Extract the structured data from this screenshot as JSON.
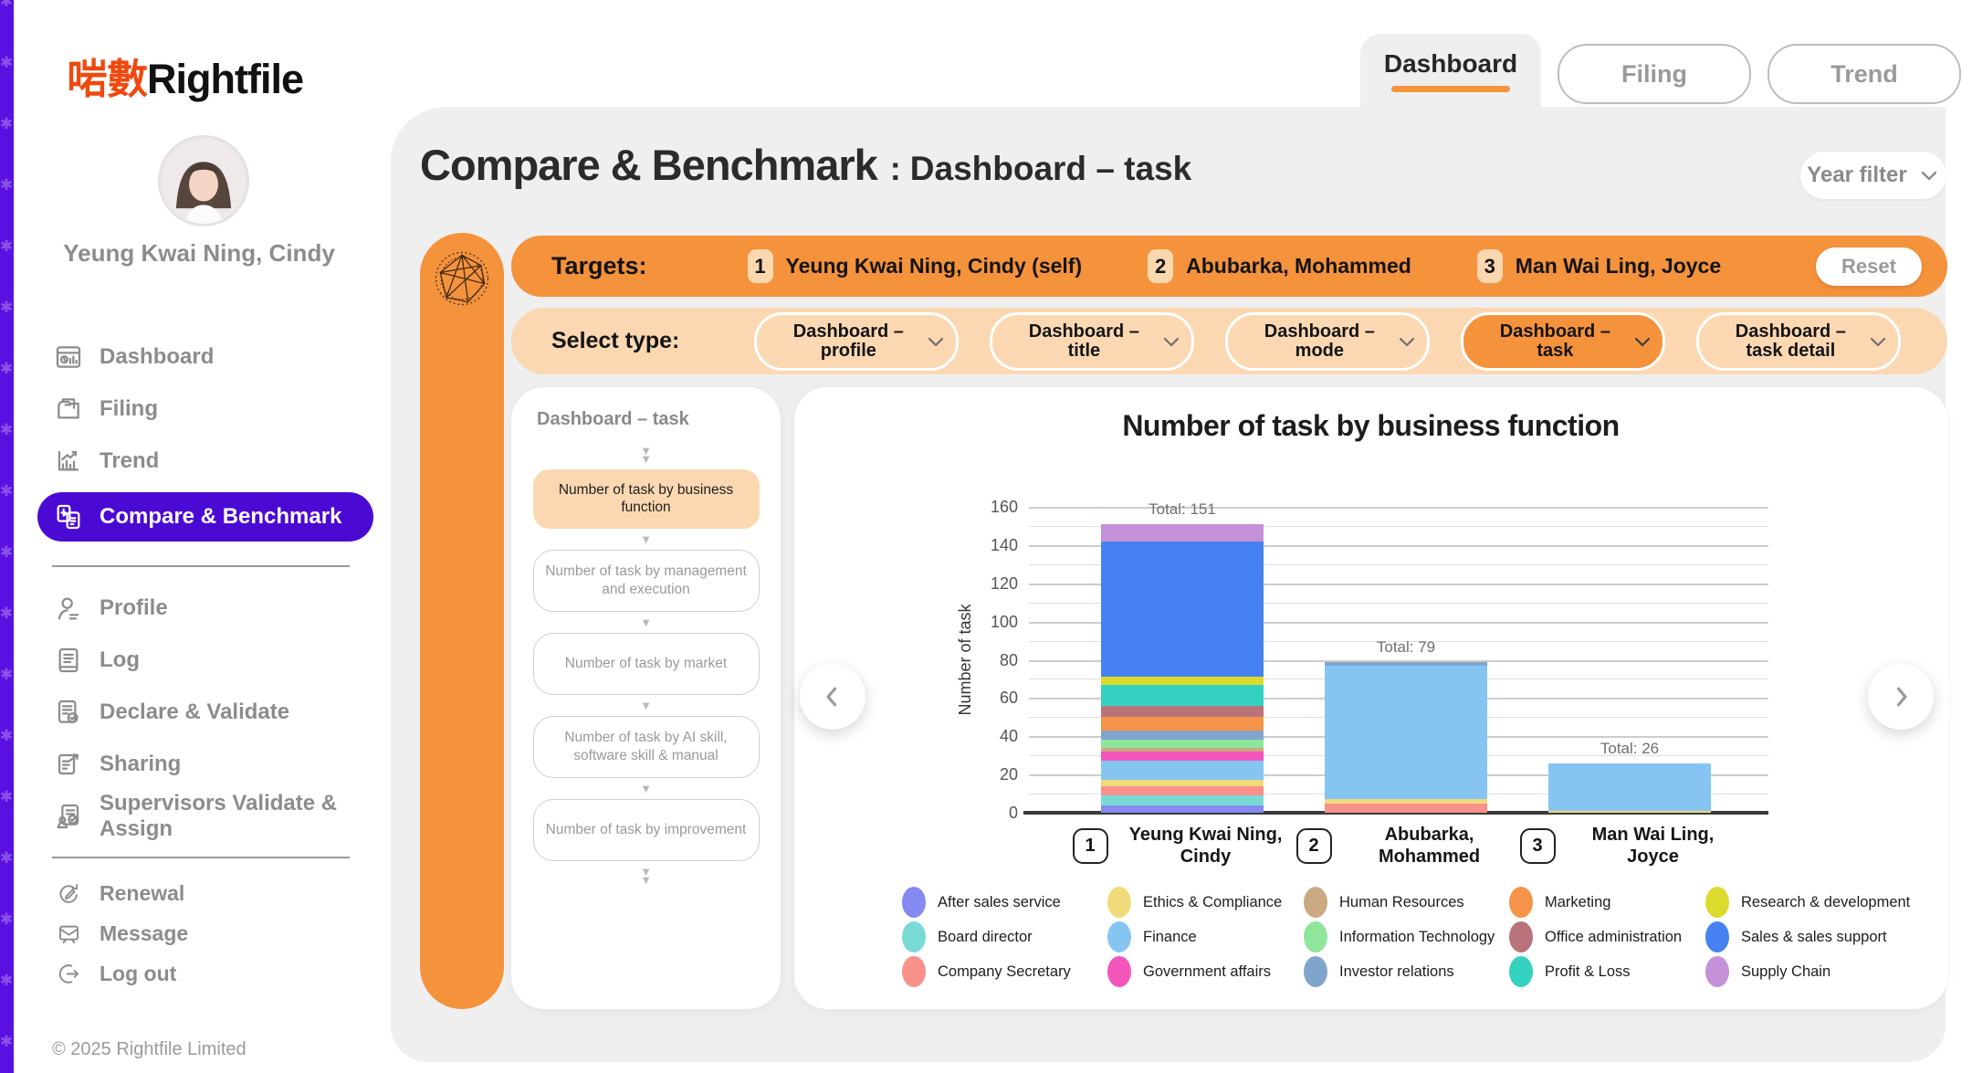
{
  "brand": {
    "logo_cjk": "啱數",
    "logo_latin": "Rightfile"
  },
  "top_tabs": [
    {
      "label": "Dashboard",
      "active": true
    },
    {
      "label": "Filing",
      "active": false
    },
    {
      "label": "Trend",
      "active": false
    }
  ],
  "sidebar": {
    "user_name": "Yeung Kwai Ning, Cindy",
    "items": [
      {
        "id": "dashboard",
        "label": "Dashboard",
        "icon": "dashboard-icon"
      },
      {
        "id": "filing",
        "label": "Filing",
        "icon": "filing-icon"
      },
      {
        "id": "trend",
        "label": "Trend",
        "icon": "trend-icon"
      },
      {
        "id": "compare-benchmark",
        "label": "Compare & Benchmark",
        "icon": "compare-benchmark-icon",
        "active": true
      },
      {
        "divider": true
      },
      {
        "id": "profile",
        "label": "Profile",
        "icon": "profile-icon"
      },
      {
        "id": "log",
        "label": "Log",
        "icon": "log-icon"
      },
      {
        "id": "declare-validate",
        "label": "Declare & Validate",
        "icon": "declare-validate-icon"
      },
      {
        "id": "sharing",
        "label": "Sharing",
        "icon": "sharing-icon"
      },
      {
        "id": "supervisors-validate-assign",
        "label": "Supervisors Validate & Assign",
        "icon": "supervisors-validate-assign-icon"
      },
      {
        "divider": true
      },
      {
        "id": "renewal",
        "label": "Renewal",
        "icon": "renewal-icon",
        "small": true
      },
      {
        "id": "message",
        "label": "Message",
        "icon": "message-icon",
        "small": true
      },
      {
        "id": "logout",
        "label": "Log out",
        "icon": "logout-icon",
        "small": true
      }
    ],
    "footer": "© 2025  Rightfile Limited"
  },
  "header": {
    "title_main": "Compare & Benchmark",
    "title_sep": ":",
    "title_sub": "Dashboard – task",
    "year_filter_label": "Year filter"
  },
  "targets": {
    "label": "Targets:",
    "reset_label": "Reset",
    "items": [
      {
        "badge": "1",
        "name": "Yeung Kwai Ning, Cindy (self)"
      },
      {
        "badge": "2",
        "name": "Abubarka, Mohammed"
      },
      {
        "badge": "3",
        "name": "Man Wai Ling, Joyce"
      }
    ]
  },
  "select_type": {
    "label": "Select type:",
    "options": [
      {
        "lines": [
          "Dashboard –",
          "profile"
        ],
        "selected": false
      },
      {
        "lines": [
          "Dashboard –",
          "title"
        ],
        "selected": false
      },
      {
        "lines": [
          "Dashboard –",
          "mode"
        ],
        "selected": false
      },
      {
        "lines": [
          "Dashboard –",
          "task"
        ],
        "selected": true
      },
      {
        "lines": [
          "Dashboard –",
          "task detail"
        ],
        "selected": false
      }
    ]
  },
  "flow": {
    "heading": "Dashboard – task",
    "steps": [
      {
        "label": "Number of task by business function",
        "active": true
      },
      {
        "label": "Number of task by management and execution",
        "active": false
      },
      {
        "label": "Number of task by market",
        "active": false
      },
      {
        "label": "Number of task by AI skill, software skill & manual",
        "active": false
      },
      {
        "label": "Number of task by improvement",
        "active": false
      }
    ]
  },
  "chart_data": {
    "type": "bar",
    "stacked": true,
    "title": "Number of task by business function",
    "ylabel": "Number of task",
    "ylim": [
      0,
      160
    ],
    "ytick_step": 20,
    "grid_step": 10,
    "grid": true,
    "legend_position": "bottom",
    "categories": [
      {
        "badge": "1",
        "name": "Yeung Kwai Ning, Cindy"
      },
      {
        "badge": "2",
        "name": "Abubarka, Mohammed"
      },
      {
        "badge": "3",
        "name": "Man Wai Ling, Joyce"
      }
    ],
    "totals": [
      151,
      79,
      26
    ],
    "total_label_prefix": "Total: ",
    "series": [
      {
        "name": "After sales service",
        "color": "#8589f2",
        "values": [
          4,
          0,
          0
        ]
      },
      {
        "name": "Board director",
        "color": "#79dad5",
        "values": [
          5,
          0,
          0
        ]
      },
      {
        "name": "Company Secretary",
        "color": "#f8918a",
        "values": [
          5,
          5,
          0
        ]
      },
      {
        "name": "Ethics & Compliance",
        "color": "#f1da7a",
        "values": [
          3,
          2,
          1
        ]
      },
      {
        "name": "Finance",
        "color": "#86c5f2",
        "values": [
          10,
          70,
          25
        ]
      },
      {
        "name": "Government affairs",
        "color": "#f356bb",
        "values": [
          5,
          0,
          0
        ]
      },
      {
        "name": "Human Resources",
        "color": "#cba983",
        "values": [
          2,
          0,
          0
        ]
      },
      {
        "name": "Information Technology",
        "color": "#8ee59b",
        "values": [
          4,
          0,
          0
        ]
      },
      {
        "name": "Investor relations",
        "color": "#80a5cb",
        "values": [
          5,
          2,
          0
        ]
      },
      {
        "name": "Marketing",
        "color": "#f59349",
        "values": [
          7,
          0,
          0
        ]
      },
      {
        "name": "Office administration",
        "color": "#b8737b",
        "values": [
          6,
          0,
          0
        ]
      },
      {
        "name": "Profit & Loss",
        "color": "#34d1c0",
        "values": [
          11,
          0,
          0
        ]
      },
      {
        "name": "Research & development",
        "color": "#dcdb2d",
        "values": [
          4,
          0,
          0
        ]
      },
      {
        "name": "Sales & sales support",
        "color": "#4681f2",
        "values": [
          71,
          0,
          0
        ]
      },
      {
        "name": "Supply Chain",
        "color": "#c491d8",
        "values": [
          9,
          0,
          0
        ]
      }
    ]
  },
  "colors": {
    "accent_orange": "#f5923c",
    "peach": "#fbd8b2",
    "active_purple": "#4a0ad4",
    "panel_gray": "#efeff0",
    "logo_orange": "#ee4a10",
    "edge_purple": "#5a10e0"
  }
}
